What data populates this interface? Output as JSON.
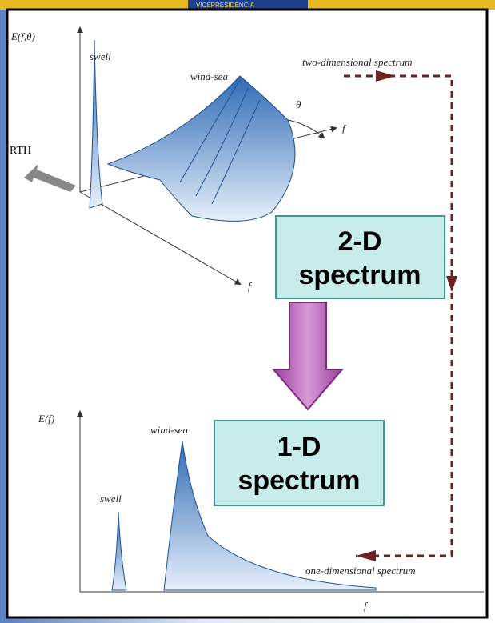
{
  "header": {
    "banner": "VICEPRESIDENCIA"
  },
  "top_plot": {
    "y_label": "E(f,θ)",
    "swell": "swell",
    "wind_sea": "wind-sea",
    "theta": "θ",
    "f_right": "f",
    "f_bottom": "f",
    "side_text": "RTH"
  },
  "bottom_plot": {
    "y_label": "E(f)",
    "wind_sea": "wind-sea",
    "swell": "swell",
    "f_axis": "f"
  },
  "flow": {
    "top_label": "two-dimensional spectrum",
    "bottom_label": "one-dimensional spectrum"
  },
  "boxes": {
    "two_d": [
      "2-D",
      "spectrum"
    ],
    "one_d": [
      "1-D",
      "spectrum"
    ]
  }
}
